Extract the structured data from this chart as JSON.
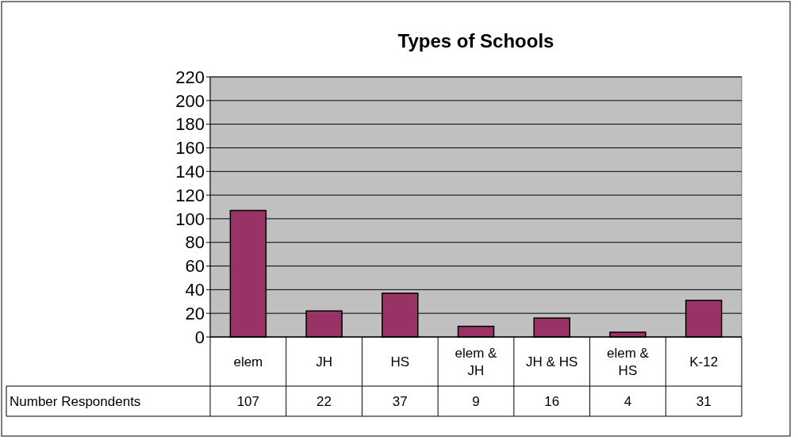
{
  "chart_data": {
    "type": "bar",
    "title": "Types of Schools",
    "categories": [
      "elem",
      "JH",
      "HS",
      "elem & JH",
      "JH & HS",
      "elem & HS",
      "K-12"
    ],
    "series": [
      {
        "name": "Number Respondents",
        "color": "#993366",
        "values": [
          107,
          22,
          37,
          9,
          16,
          4,
          31
        ]
      }
    ],
    "ylim": [
      0,
      220
    ],
    "yticks": [
      0,
      20,
      40,
      60,
      80,
      100,
      120,
      140,
      160,
      180,
      200,
      220
    ],
    "grid": "y",
    "data_labels": true,
    "legend": "bottom"
  }
}
